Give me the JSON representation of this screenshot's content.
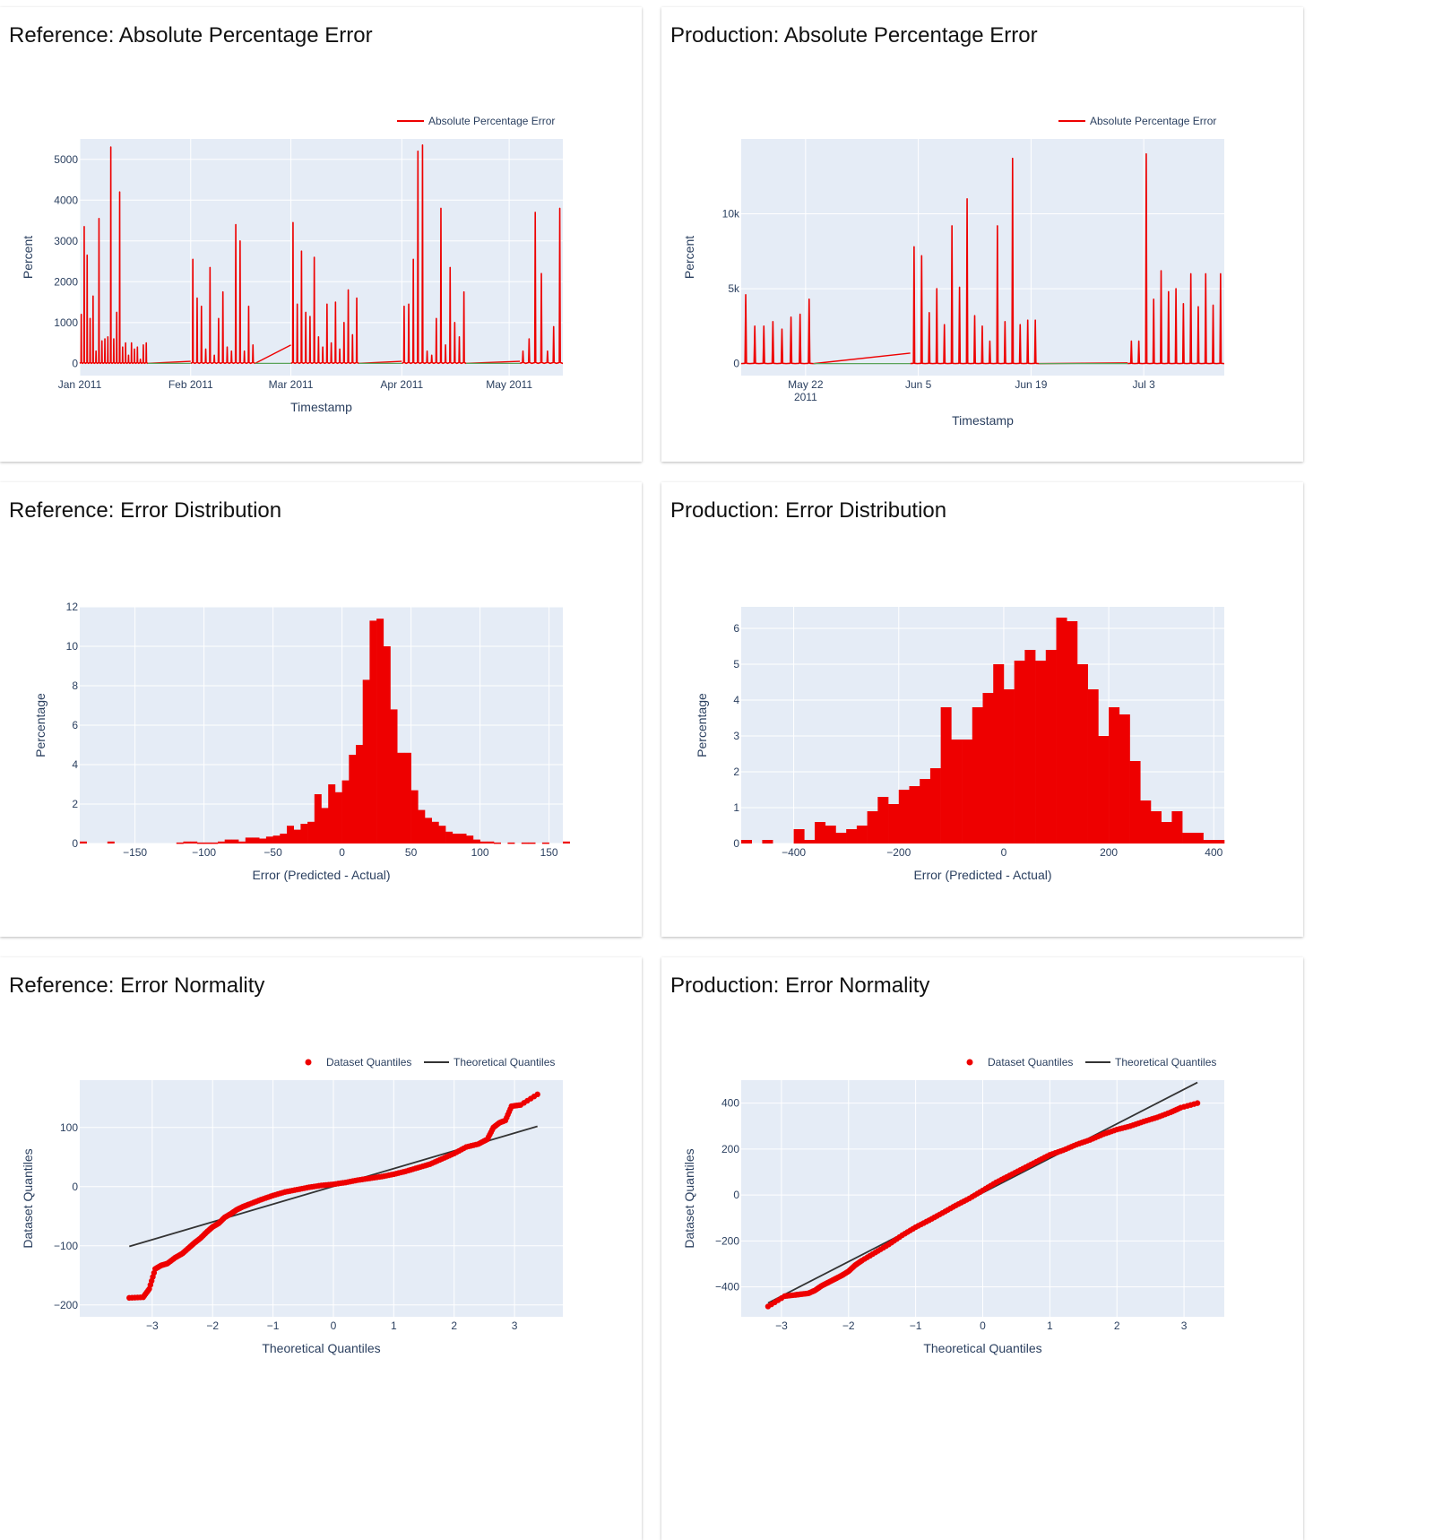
{
  "colors": {
    "plot_bg": "#e5ecf6",
    "grid": "#ffffff",
    "text": "#2a3f5f",
    "series_red": "#ee0000",
    "theory_line": "#333333",
    "zero_green": "#5aa35a"
  },
  "cards": [
    {
      "id": "ref_ape",
      "title": "Reference: Absolute Percentage Error"
    },
    {
      "id": "prod_ape",
      "title": "Production: Absolute Percentage Error"
    },
    {
      "id": "ref_dist",
      "title": "Reference: Error Distribution"
    },
    {
      "id": "prod_dist",
      "title": "Production: Error Distribution"
    },
    {
      "id": "ref_norm",
      "title": "Reference: Error Normality"
    },
    {
      "id": "prod_norm",
      "title": "Production: Error Normality"
    }
  ],
  "chart_data": [
    {
      "id": "ref_ape",
      "type": "line",
      "xlabel": "Timestamp",
      "ylabel": "Percent",
      "xlim": [
        "2011-01-01",
        "2011-05-16"
      ],
      "ylim": [
        -300,
        5500
      ],
      "ytick_values": [
        0,
        1000,
        2000,
        3000,
        4000,
        5000
      ],
      "ytick_labels": [
        "0",
        "1000",
        "2000",
        "3000",
        "4000",
        "5000"
      ],
      "xtick_values": [
        "2011-01-01",
        "2011-02-01",
        "2011-03-01",
        "2011-04-01",
        "2011-05-01"
      ],
      "xtick_labels": [
        "Jan 2011",
        "Feb 2011",
        "Mar 2011",
        "Apr 2011",
        "May 2011"
      ],
      "legend": {
        "entries": [
          {
            "name": "Absolute Percentage Error",
            "symbol": "line"
          }
        ],
        "position": "top-right"
      },
      "series": [
        {
          "name": "Absolute Percentage Error",
          "segments": [
            {
              "start": "2011-01-01",
              "end": "2011-01-20",
              "peaks": [
                1200,
                3350,
                2650,
                1100,
                1650,
                300,
                3550,
                550,
                600,
                650,
                5300,
                600,
                1250,
                4200,
                400,
                500,
                200,
                500,
                350,
                400,
                100,
                450,
                500
              ]
            },
            {
              "start": "2011-02-01",
              "end": "2011-02-19",
              "peaks": [
                2550,
                1600,
                1400,
                350,
                2350,
                200,
                1100,
                1750,
                400,
                300,
                3400,
                3000,
                300,
                1400,
                450
              ]
            },
            {
              "start": "2011-03-01",
              "end": "2011-03-20",
              "peaks": [
                3450,
                1450,
                2750,
                1250,
                1150,
                2600,
                650,
                400,
                1450,
                500,
                1500,
                350,
                1000,
                1800,
                700,
                1600
              ]
            },
            {
              "start": "2011-04-01",
              "end": "2011-04-19",
              "peaks": [
                1400,
                1450,
                2550,
                5200,
                5350,
                300,
                200,
                1100,
                3800,
                450,
                2350,
                1000,
                650,
                1750
              ]
            },
            {
              "start": "2011-05-04",
              "end": "2011-05-16",
              "peaks": [
                300,
                600,
                3700,
                2200,
                300,
                900,
                3800
              ]
            }
          ]
        },
        {
          "name": "baseline",
          "points": [
            [
              "2011-01-20",
              0
            ],
            [
              "2011-02-01",
              0
            ],
            [
              "2011-02-19",
              0
            ],
            [
              "2011-03-01",
              0
            ],
            [
              "2011-03-20",
              0
            ],
            [
              "2011-04-01",
              0
            ],
            [
              "2011-04-19",
              0
            ],
            [
              "2011-05-04",
              0
            ]
          ]
        }
      ]
    },
    {
      "id": "prod_ape",
      "type": "line",
      "xlabel": "Timestamp",
      "ylabel": "Percent",
      "xlim": [
        "2011-05-14",
        "2011-07-13"
      ],
      "ylim": [
        -800,
        15000
      ],
      "ytick_values": [
        0,
        5000,
        10000
      ],
      "ytick_labels": [
        "0",
        "5k",
        "10k"
      ],
      "xtick_values": [
        "2011-05-22",
        "2011-06-05",
        "2011-06-19",
        "2011-07-03"
      ],
      "xtick_labels": [
        "May 22\n2011",
        "Jun 5",
        "Jun 19",
        "Jul 3"
      ],
      "legend": {
        "entries": [
          {
            "name": "Absolute Percentage Error",
            "symbol": "line"
          }
        ],
        "position": "top-right"
      },
      "series": [
        {
          "name": "Absolute Percentage Error",
          "segments": [
            {
              "start": "2011-05-14",
              "end": "2011-05-23",
              "peaks": [
                4600,
                2500,
                2500,
                2800,
                2300,
                3100,
                3300,
                4300
              ]
            },
            {
              "start": "2011-06-04",
              "end": "2011-06-20",
              "peaks": [
                7800,
                7200,
                3400,
                5000,
                2600,
                9200,
                5100,
                11000,
                3200,
                2500,
                1500,
                9200,
                2800,
                13700,
                2600,
                2900,
                2900
              ]
            },
            {
              "start": "2011-07-01",
              "end": "2011-07-13",
              "peaks": [
                1500,
                1500,
                14000,
                4300,
                6200,
                4800,
                5000,
                4000,
                6000,
                3800,
                6000,
                3900,
                6000
              ]
            }
          ]
        },
        {
          "name": "baseline",
          "points": [
            [
              "2011-05-23",
              0
            ],
            [
              "2011-06-04",
              0
            ],
            [
              "2011-06-20",
              0
            ],
            [
              "2011-07-01",
              0
            ]
          ]
        }
      ]
    },
    {
      "id": "ref_dist",
      "type": "bar",
      "xlabel": "Error (Predicted - Actual)",
      "ylabel": "Percentage",
      "xlim": [
        -190,
        160
      ],
      "ylim": [
        0,
        12
      ],
      "ytick_values": [
        0,
        2,
        4,
        6,
        8,
        10,
        12
      ],
      "ytick_labels": [
        "0",
        "2",
        "4",
        "6",
        "8",
        "10",
        "12"
      ],
      "xtick_values": [
        -150,
        -100,
        -50,
        0,
        50,
        100,
        150
      ],
      "xtick_labels": [
        "−150",
        "−100",
        "−50",
        "0",
        "50",
        "100",
        "150"
      ],
      "bin_start": -190,
      "bin_width": 5,
      "values": [
        0.1,
        0,
        0,
        0,
        0.1,
        0,
        0,
        0,
        0,
        0,
        0,
        0,
        0,
        0,
        0.05,
        0.1,
        0.1,
        0.05,
        0.05,
        0.05,
        0.1,
        0.2,
        0.2,
        0.1,
        0.3,
        0.3,
        0.25,
        0.35,
        0.4,
        0.5,
        0.9,
        0.7,
        1.0,
        1.1,
        2.5,
        1.8,
        3.0,
        2.6,
        3.2,
        4.5,
        5.0,
        8.3,
        11.3,
        11.4,
        10.0,
        6.8,
        4.6,
        4.6,
        2.7,
        1.7,
        1.3,
        1.1,
        0.9,
        0.6,
        0.5,
        0.5,
        0.4,
        0.2,
        0.1,
        0.1,
        0.05,
        0,
        0.05,
        0,
        0.05,
        0.05,
        0,
        0.05,
        0,
        0,
        0.1
      ]
    },
    {
      "id": "prod_dist",
      "type": "bar",
      "xlabel": "Error (Predicted - Actual)",
      "ylabel": "Percentage",
      "xlim": [
        -500,
        420
      ],
      "ylim": [
        0,
        6.6
      ],
      "ytick_values": [
        0,
        1,
        2,
        3,
        4,
        5,
        6
      ],
      "ytick_labels": [
        "0",
        "1",
        "2",
        "3",
        "4",
        "5",
        "6"
      ],
      "xtick_values": [
        -400,
        -200,
        0,
        200,
        400
      ],
      "xtick_labels": [
        "−400",
        "−200",
        "0",
        "200",
        "400"
      ],
      "bin_start": -500,
      "bin_width": 20,
      "values": [
        0.1,
        0,
        0.1,
        0,
        0,
        0.4,
        0.1,
        0.6,
        0.5,
        0.3,
        0.4,
        0.5,
        0.9,
        1.3,
        1.1,
        1.5,
        1.6,
        1.8,
        2.1,
        3.8,
        2.9,
        2.9,
        3.8,
        4.2,
        5.0,
        4.3,
        5.1,
        5.4,
        5.1,
        5.4,
        6.3,
        6.2,
        5.0,
        4.3,
        3.0,
        3.8,
        3.6,
        2.3,
        1.2,
        0.9,
        0.6,
        0.9,
        0.3,
        0.3,
        0.1,
        0.1
      ]
    },
    {
      "id": "ref_norm",
      "type": "scatter",
      "xlabel": "Theoretical Quantiles",
      "ylabel": "Dataset Quantiles",
      "xlim": [
        -4.2,
        3.8
      ],
      "ylim": [
        -220,
        180
      ],
      "ytick_values": [
        -200,
        -100,
        0,
        100
      ],
      "ytick_labels": [
        "−200",
        "−100",
        "0",
        "100"
      ],
      "xtick_values": [
        -3,
        -2,
        -1,
        0,
        1,
        2,
        3
      ],
      "xtick_labels": [
        "−3",
        "−2",
        "−1",
        "0",
        "1",
        "2",
        "3"
      ],
      "legend": {
        "entries": [
          {
            "name": "Dataset Quantiles",
            "symbol": "marker"
          },
          {
            "name": "Theoretical Quantiles",
            "symbol": "line"
          }
        ],
        "position": "top-right"
      },
      "series": [
        {
          "name": "Dataset Quantiles",
          "x": [
            -3.38,
            -3.15,
            -3.05,
            -2.95,
            -2.85,
            -2.75,
            -2.62,
            -2.5,
            -2.4,
            -2.3,
            -2.2,
            -2.1,
            -2.0,
            -1.9,
            -1.8,
            -1.7,
            -1.6,
            -1.5,
            -1.4,
            -1.2,
            -1.0,
            -0.8,
            -0.6,
            -0.4,
            -0.2,
            0,
            0.2,
            0.4,
            0.6,
            0.8,
            1.0,
            1.2,
            1.4,
            1.6,
            1.8,
            2.0,
            2.2,
            2.4,
            2.55,
            2.65,
            2.75,
            2.85,
            2.95,
            3.1,
            3.38
          ],
          "y": [
            -188,
            -187,
            -173,
            -139,
            -133,
            -130,
            -120,
            -113,
            -104,
            -95,
            -87,
            -77,
            -68,
            -62,
            -52,
            -46,
            -39,
            -34,
            -30,
            -22,
            -15,
            -9,
            -5,
            -1,
            2,
            4,
            7,
            11,
            14,
            17,
            21,
            26,
            32,
            38,
            47,
            56,
            67,
            72,
            80,
            100,
            108,
            112,
            136,
            138,
            156
          ]
        },
        {
          "name": "Theoretical Quantiles",
          "x": [
            -3.38,
            3.38
          ],
          "y": [
            -101,
            102
          ]
        }
      ]
    },
    {
      "id": "prod_norm",
      "type": "scatter",
      "xlabel": "Theoretical Quantiles",
      "ylabel": "Dataset Quantiles",
      "xlim": [
        -3.6,
        3.6
      ],
      "ylim": [
        -530,
        500
      ],
      "ytick_values": [
        -400,
        -200,
        0,
        200,
        400
      ],
      "ytick_labels": [
        "−400",
        "−200",
        "0",
        "200",
        "400"
      ],
      "xtick_values": [
        -3,
        -2,
        -1,
        0,
        1,
        2,
        3
      ],
      "xtick_labels": [
        "−3",
        "−2",
        "−1",
        "0",
        "1",
        "2",
        "3"
      ],
      "legend": {
        "entries": [
          {
            "name": "Dataset Quantiles",
            "symbol": "marker"
          },
          {
            "name": "Theoretical Quantiles",
            "symbol": "line"
          }
        ],
        "position": "top-right"
      },
      "series": [
        {
          "name": "Dataset Quantiles",
          "x": [
            -3.2,
            -2.95,
            -2.8,
            -2.72,
            -2.6,
            -2.5,
            -2.4,
            -2.3,
            -2.2,
            -2.1,
            -2.0,
            -1.9,
            -1.8,
            -1.6,
            -1.4,
            -1.2,
            -1.0,
            -0.8,
            -0.6,
            -0.4,
            -0.2,
            0,
            0.2,
            0.4,
            0.6,
            0.8,
            1.0,
            1.2,
            1.4,
            1.6,
            1.8,
            2.0,
            2.2,
            2.4,
            2.6,
            2.8,
            2.95,
            3.2
          ],
          "y": [
            -485,
            -440,
            -435,
            -432,
            -428,
            -415,
            -395,
            -380,
            -365,
            -350,
            -332,
            -305,
            -285,
            -250,
            -215,
            -175,
            -140,
            -110,
            -78,
            -45,
            -15,
            20,
            55,
            85,
            115,
            145,
            175,
            195,
            220,
            240,
            265,
            285,
            300,
            320,
            338,
            360,
            380,
            400
          ]
        },
        {
          "name": "Theoretical Quantiles",
          "x": [
            -3.2,
            3.2
          ],
          "y": [
            -470,
            490
          ]
        }
      ]
    }
  ]
}
